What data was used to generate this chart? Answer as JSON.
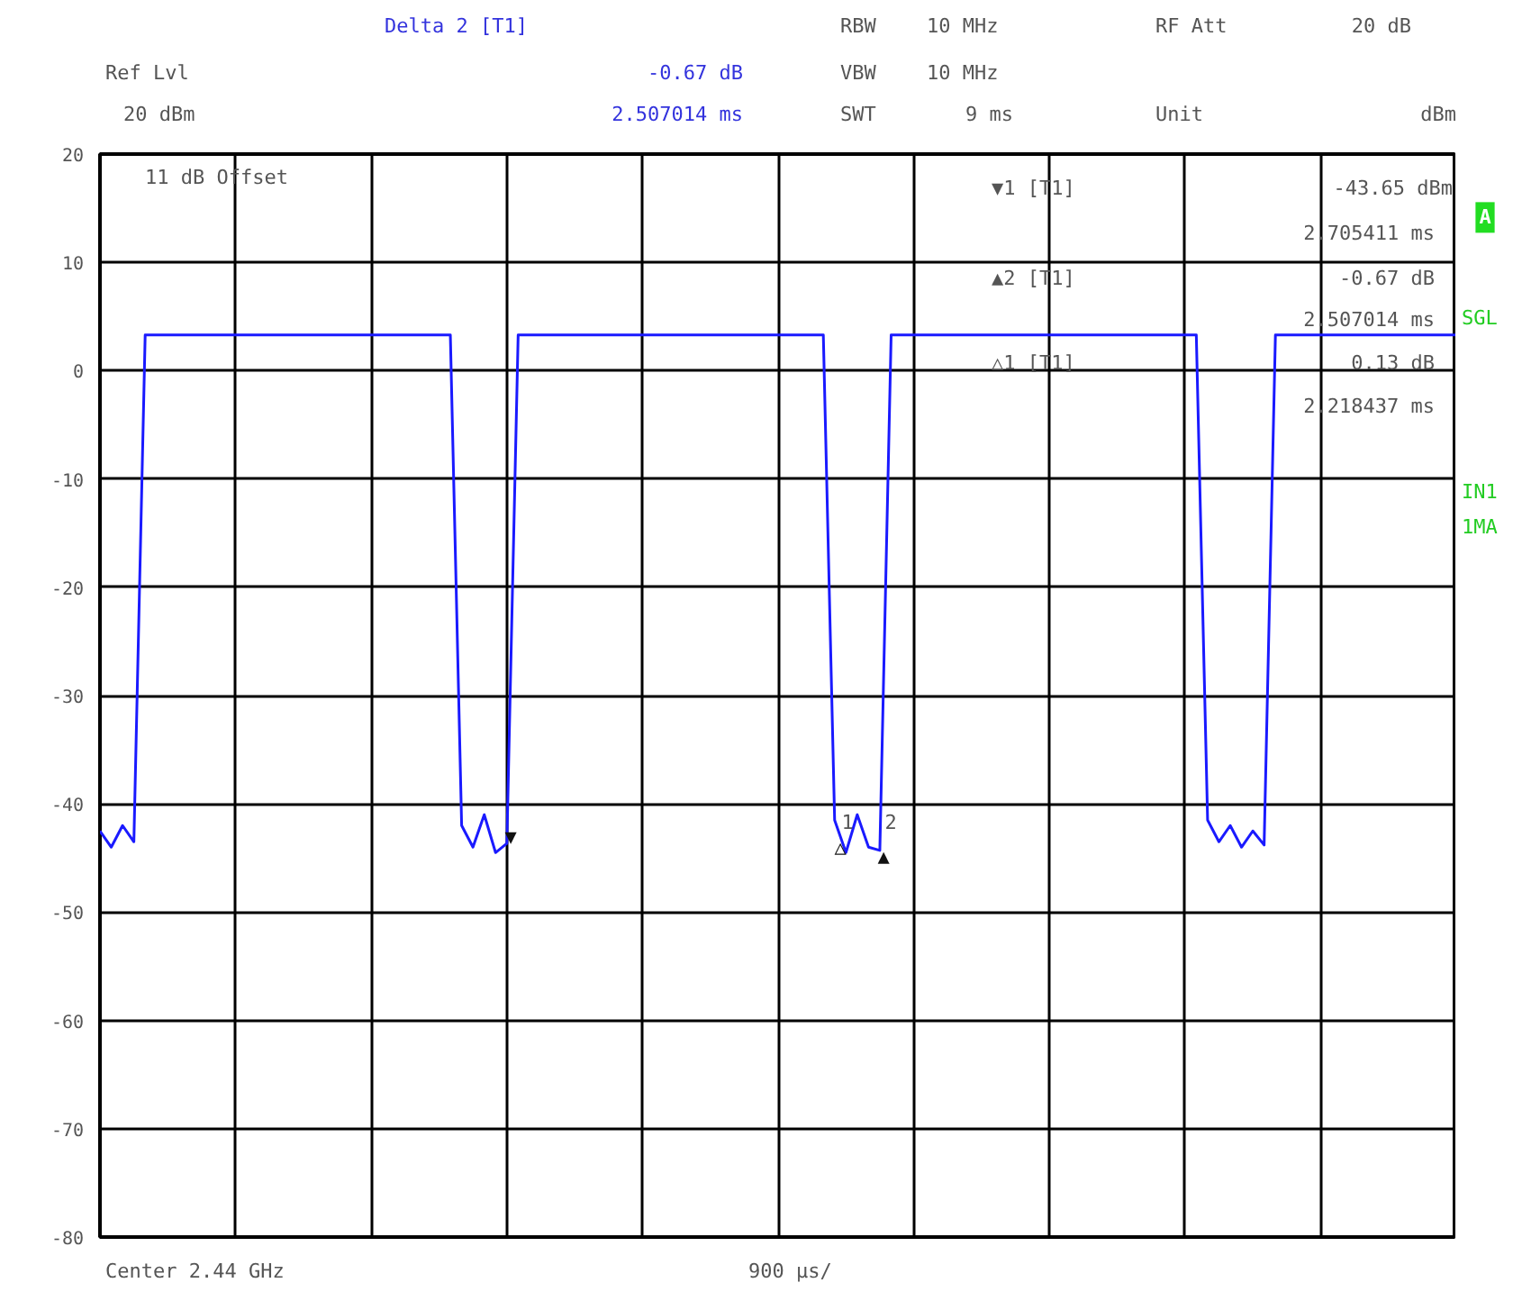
{
  "chart_data": {
    "type": "line",
    "ylim": [
      -80,
      20
    ],
    "categories": [
      null,
      null,
      null,
      null,
      null,
      null,
      null,
      null,
      null,
      null,
      null,
      null,
      null,
      null,
      null,
      null,
      null,
      null,
      null,
      null,
      null,
      null,
      null,
      null,
      null,
      null,
      null,
      null,
      null,
      null,
      null,
      null,
      null,
      null,
      null,
      null,
      null,
      null,
      null,
      null,
      null,
      null,
      null,
      null,
      null,
      null,
      null,
      null,
      null,
      null,
      null,
      null,
      null,
      null,
      null,
      null,
      null,
      null,
      null,
      null,
      null,
      null,
      null,
      null,
      null,
      null,
      null,
      null,
      null,
      null,
      null,
      null,
      null,
      null,
      null,
      null,
      null,
      null,
      null,
      null,
      null,
      null,
      null,
      null,
      null,
      null,
      null,
      null,
      null,
      null,
      null,
      null,
      null,
      null,
      null,
      null,
      null,
      null,
      null,
      null,
      null,
      null,
      null,
      null,
      null,
      null,
      null,
      null,
      null,
      null,
      null,
      null,
      null,
      null,
      null,
      null,
      null,
      null,
      null,
      null,
      null
    ],
    "yticks": [
      20,
      10,
      0,
      -10,
      -20,
      -30,
      -40,
      -50,
      -60,
      -70,
      -80
    ],
    "tick_labels": "y",
    "grid": true,
    "series": [
      {
        "color": "#1a1aff",
        "values": [
          -42.5,
          -44,
          -42,
          -43.5,
          3.3,
          3.3,
          3.3,
          3.3,
          3.3,
          3.3,
          3.3,
          3.3,
          3.3,
          3.3,
          3.3,
          3.3,
          3.3,
          3.3,
          3.3,
          3.3,
          3.3,
          3.3,
          3.3,
          3.3,
          3.3,
          3.3,
          3.3,
          3.3,
          3.3,
          3.3,
          3.3,
          3.3,
          -42,
          -44,
          -41,
          -44.5,
          -43.65,
          3.3,
          3.3,
          3.3,
          3.3,
          3.3,
          3.3,
          3.3,
          3.3,
          3.3,
          3.3,
          3.3,
          3.3,
          3.3,
          3.3,
          3.3,
          3.3,
          3.3,
          3.3,
          3.3,
          3.3,
          3.3,
          3.3,
          3.3,
          3.3,
          3.3,
          3.3,
          3.3,
          3.3,
          -41.5,
          -44.5,
          -41,
          -44,
          -44.3,
          3.3,
          3.3,
          3.3,
          3.3,
          3.3,
          3.3,
          3.3,
          3.3,
          3.3,
          3.3,
          3.3,
          3.3,
          3.3,
          3.3,
          3.3,
          3.3,
          3.3,
          3.3,
          3.3,
          3.3,
          3.3,
          3.3,
          3.3,
          3.3,
          3.3,
          3.3,
          3.3,
          3.3,
          -41.5,
          -43.5,
          -42,
          -44,
          -42.5,
          -43.8,
          3.3,
          3.3,
          3.3,
          3.3,
          3.3,
          3.3,
          3.3,
          3.3,
          3.3,
          3.3,
          3.3,
          3.3,
          3.3,
          3.3,
          3.3,
          3.3,
          3.3
        ]
      }
    ],
    "annotations": [
      "Delta 2 [T1]",
      "-0.67 dB",
      "2.507014 ms",
      "Ref Lvl",
      "20 dBm",
      "RBW",
      "10 MHz",
      "VBW",
      "10 MHz",
      "SWT",
      "9 ms",
      "RF Att",
      "20 dB",
      "Unit",
      "dBm",
      "11 dB Offset",
      "▼1 [T1]",
      "-43.65 dBm",
      "2.705411 ms",
      "▲2 [T1]",
      "-0.67 dB",
      "2.507014 ms",
      "△1 [T1]",
      "0.13 dB",
      "2.218437 ms",
      "A",
      "SGL",
      "IN1",
      "1MA",
      "Center 2.44 GHz",
      "900 µs/",
      "▼",
      "△",
      "▲",
      "1",
      "2"
    ]
  }
}
